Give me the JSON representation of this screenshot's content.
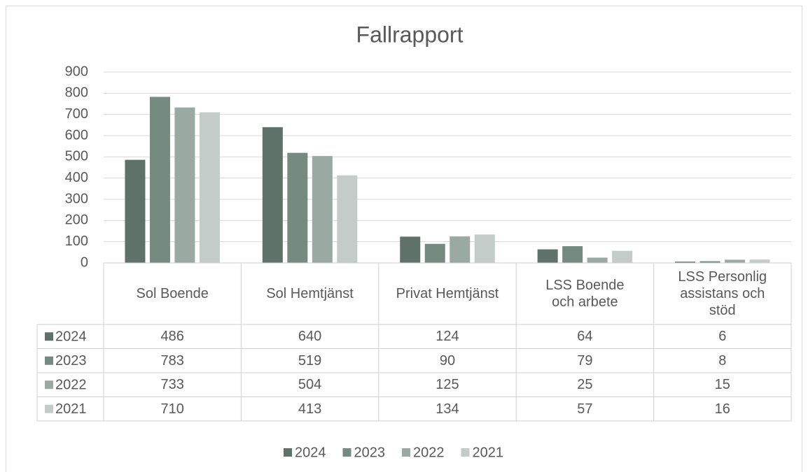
{
  "chart_data": {
    "type": "bar",
    "title": "Fallrapport",
    "categories": [
      "Sol Boende",
      "Sol Hemtjänst",
      "Privat Hemtjänst",
      "LSS Boende\noch arbete",
      "LSS Personlig\nassistans och\nstöd"
    ],
    "series": [
      {
        "name": "2024",
        "color": "#5f7269",
        "values": [
          486,
          640,
          124,
          64,
          6
        ]
      },
      {
        "name": "2023",
        "color": "#768b80",
        "values": [
          783,
          519,
          90,
          79,
          8
        ]
      },
      {
        "name": "2022",
        "color": "#9aaaa3",
        "values": [
          733,
          504,
          125,
          25,
          15
        ]
      },
      {
        "name": "2021",
        "color": "#c3ccc8",
        "values": [
          710,
          413,
          134,
          57,
          16
        ]
      }
    ],
    "ylim": [
      0,
      900
    ],
    "yticks": [
      0,
      100,
      200,
      300,
      400,
      500,
      600,
      700,
      800,
      900
    ],
    "grid": true,
    "legend": "bottom"
  }
}
